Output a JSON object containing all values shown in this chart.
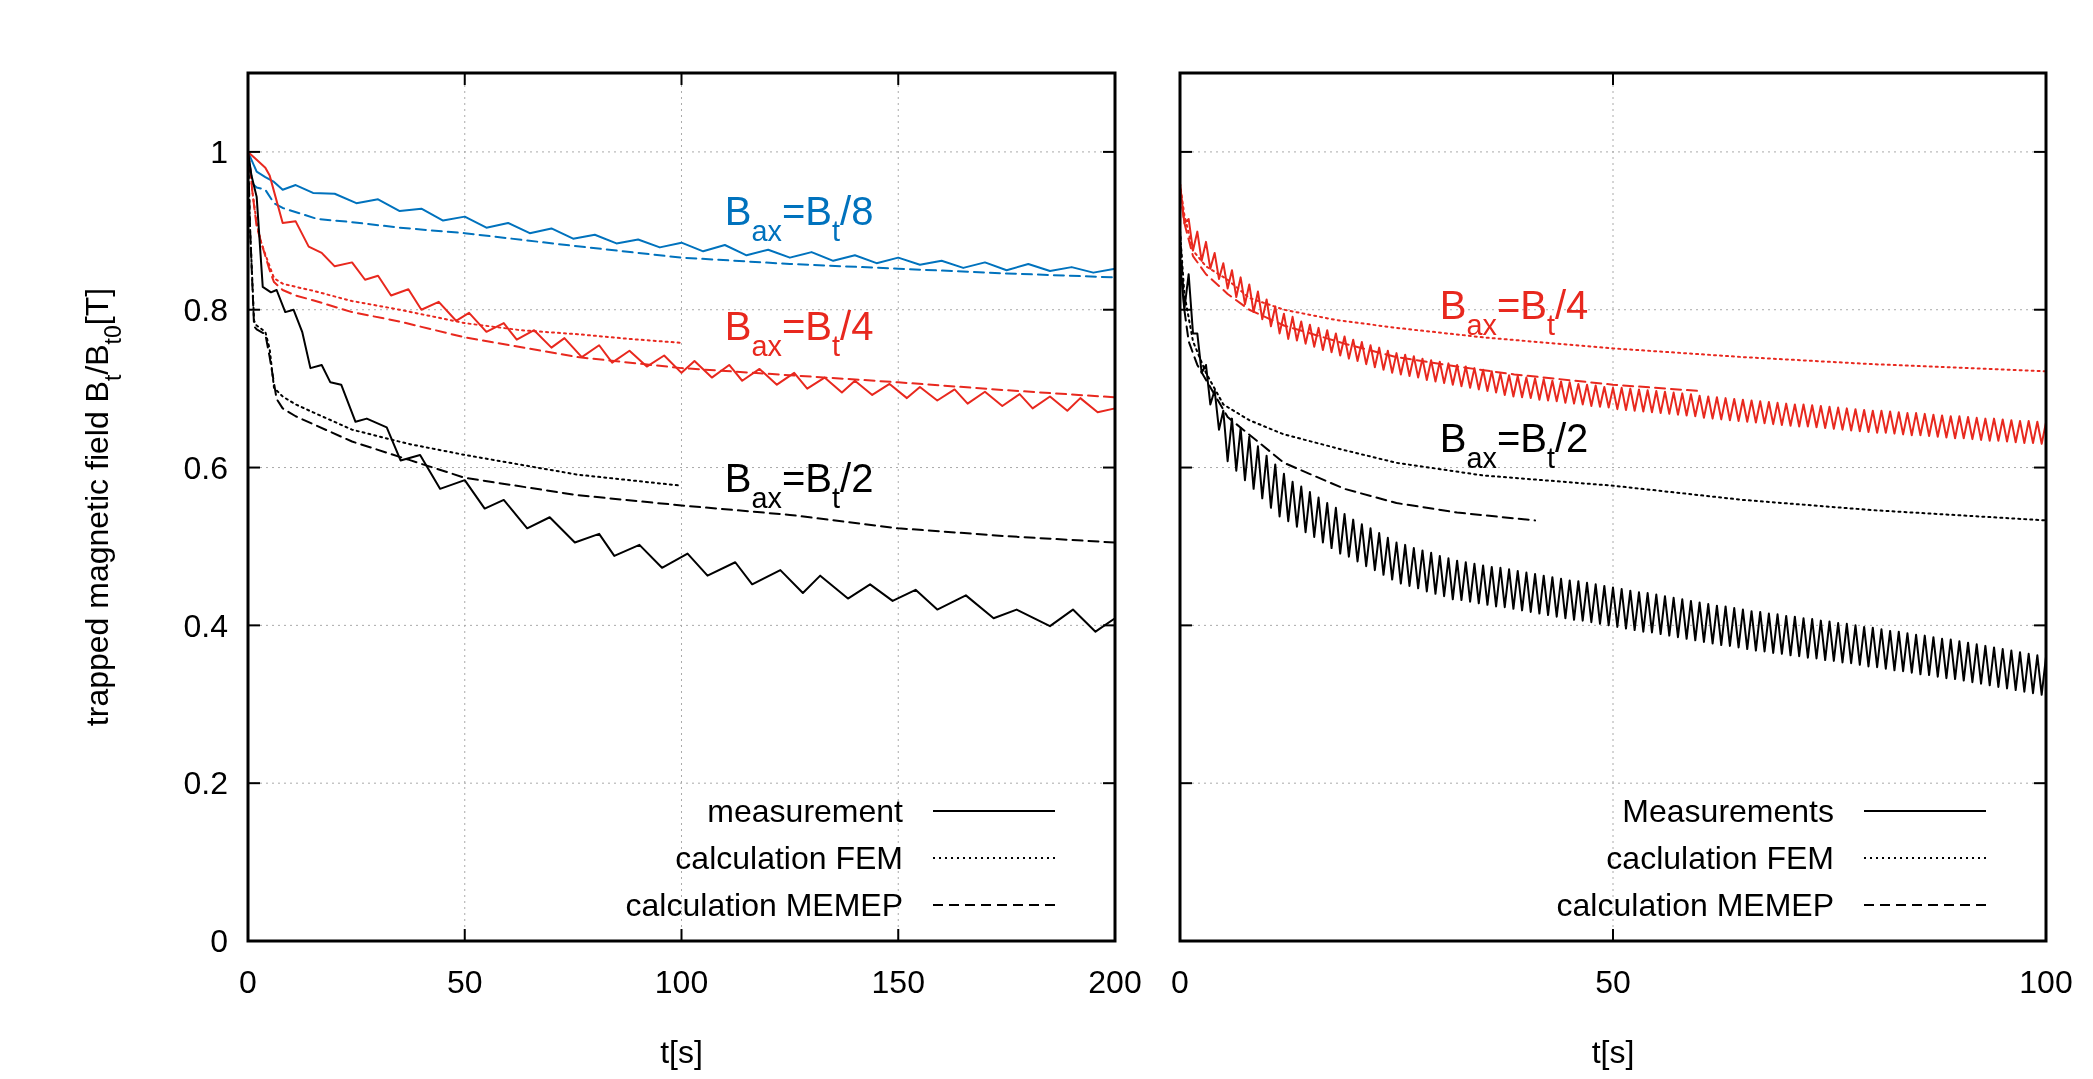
{
  "chart_data": [
    {
      "type": "line",
      "xlabel": "t[s]",
      "ylabel": "trapped magnetic field B$_{t}$/B$_{t0}$[T]",
      "xlim": [
        0,
        200
      ],
      "xticks": [
        0,
        50,
        100,
        150,
        200
      ],
      "ylim": [
        0,
        1.1
      ],
      "yticks": [
        0,
        0.2,
        0.4,
        0.6,
        0.8,
        1
      ],
      "grid": true,
      "legend": "bottom right",
      "series": [
        {
          "color": "#0072bd",
          "line_style": "solid",
          "x": [
            0,
            2,
            4,
            6,
            8,
            11,
            15,
            20,
            25,
            30,
            35,
            40,
            45,
            50,
            55,
            60,
            65,
            70,
            75,
            80,
            85,
            90,
            95,
            100,
            105,
            110,
            115,
            120,
            125,
            130,
            135,
            140,
            145,
            150,
            155,
            160,
            165,
            170,
            175,
            180,
            185,
            190,
            195,
            200
          ],
          "values": [
            1.0,
            0.975,
            0.968,
            0.962,
            0.952,
            0.958,
            0.948,
            0.947,
            0.935,
            0.94,
            0.925,
            0.928,
            0.913,
            0.918,
            0.904,
            0.91,
            0.897,
            0.903,
            0.89,
            0.895,
            0.884,
            0.889,
            0.879,
            0.885,
            0.874,
            0.882,
            0.869,
            0.876,
            0.866,
            0.873,
            0.862,
            0.869,
            0.859,
            0.866,
            0.857,
            0.862,
            0.853,
            0.86,
            0.85,
            0.858,
            0.849,
            0.854,
            0.847,
            0.852
          ]
        },
        {
          "color": "#0072bd",
          "line_style": "dashed",
          "x": [
            0,
            1,
            2,
            4,
            6,
            8,
            12,
            16,
            24,
            35,
            50,
            75,
            100,
            125,
            150,
            175,
            200
          ],
          "values": [
            1.0,
            0.96,
            0.955,
            0.952,
            0.935,
            0.929,
            0.922,
            0.915,
            0.911,
            0.904,
            0.897,
            0.881,
            0.866,
            0.858,
            0.852,
            0.846,
            0.841
          ]
        },
        {
          "color": "#e8281e",
          "line_style": "solid",
          "x": [
            0,
            2,
            4,
            5,
            6,
            8,
            11,
            14,
            17,
            20,
            24,
            27,
            30,
            33,
            37,
            40,
            44,
            48,
            51,
            55,
            59,
            62,
            66,
            70,
            73,
            77,
            81,
            84,
            88,
            92,
            96,
            100,
            103,
            107,
            111,
            114,
            118,
            122,
            126,
            129,
            133,
            137,
            140,
            144,
            148,
            152,
            155,
            159,
            163,
            166,
            170,
            174,
            178,
            181,
            185,
            189,
            192,
            196,
            200
          ],
          "values": [
            1.0,
            0.99,
            0.98,
            0.97,
            0.95,
            0.91,
            0.912,
            0.88,
            0.872,
            0.855,
            0.86,
            0.838,
            0.843,
            0.818,
            0.826,
            0.8,
            0.81,
            0.786,
            0.796,
            0.772,
            0.783,
            0.762,
            0.774,
            0.752,
            0.764,
            0.74,
            0.755,
            0.733,
            0.748,
            0.728,
            0.742,
            0.72,
            0.735,
            0.714,
            0.73,
            0.71,
            0.725,
            0.705,
            0.72,
            0.7,
            0.714,
            0.695,
            0.71,
            0.692,
            0.706,
            0.688,
            0.702,
            0.685,
            0.699,
            0.681,
            0.696,
            0.678,
            0.693,
            0.675,
            0.69,
            0.672,
            0.688,
            0.67,
            0.675
          ]
        },
        {
          "color": "#e8281e",
          "line_style": "dotted",
          "x": [
            0,
            0.5,
            1,
            2,
            3,
            4,
            5,
            6,
            8,
            11,
            15,
            24,
            35,
            50,
            63,
            76,
            88,
            100
          ],
          "values": [
            1.0,
            0.98,
            0.95,
            0.91,
            0.886,
            0.87,
            0.855,
            0.84,
            0.833,
            0.829,
            0.824,
            0.811,
            0.8,
            0.783,
            0.774,
            0.769,
            0.763,
            0.758
          ]
        },
        {
          "color": "#e8281e",
          "line_style": "dashed",
          "x": [
            0,
            0.5,
            1,
            2,
            3.4,
            5,
            6,
            8,
            11,
            15,
            24,
            35,
            50,
            76,
            100,
            125,
            150,
            175,
            200
          ],
          "values": [
            1.0,
            0.98,
            0.95,
            0.905,
            0.879,
            0.85,
            0.835,
            0.825,
            0.818,
            0.812,
            0.797,
            0.785,
            0.765,
            0.74,
            0.726,
            0.717,
            0.708,
            0.698,
            0.689
          ]
        },
        {
          "name": "measurement",
          "color": "#000000",
          "line_style": "solid",
          "x": [
            0,
            0.8,
            2,
            3.4,
            5.3,
            6.6,
            8.6,
            10.5,
            12.5,
            14.4,
            17,
            19,
            21.5,
            24.8,
            27.4,
            32,
            35.2,
            39.7,
            44.3,
            50,
            54.6,
            59,
            64.4,
            69.6,
            75.4,
            81,
            84.5,
            90.3,
            95.5,
            101.4,
            106,
            112.4,
            116.3,
            122.8,
            128,
            132,
            138.4,
            143.5,
            148.7,
            154,
            159,
            165.6,
            172,
            177.3,
            185,
            190.3,
            195.5,
            200
          ],
          "values": [
            1.0,
            0.97,
            0.943,
            0.829,
            0.822,
            0.825,
            0.797,
            0.8,
            0.772,
            0.726,
            0.73,
            0.708,
            0.705,
            0.658,
            0.662,
            0.651,
            0.609,
            0.616,
            0.573,
            0.584,
            0.548,
            0.559,
            0.523,
            0.537,
            0.505,
            0.516,
            0.488,
            0.502,
            0.473,
            0.491,
            0.463,
            0.48,
            0.452,
            0.47,
            0.441,
            0.463,
            0.434,
            0.452,
            0.431,
            0.445,
            0.42,
            0.438,
            0.409,
            0.42,
            0.399,
            0.42,
            0.392,
            0.409
          ]
        },
        {
          "name": "calculation FEM",
          "color": "#000000",
          "line_style": "dotted",
          "x": [
            0,
            0.5,
            1.4,
            2,
            4,
            5,
            6,
            8,
            11,
            15,
            24,
            37,
            50,
            76,
            100
          ],
          "values": [
            1.0,
            0.9,
            0.786,
            0.78,
            0.772,
            0.75,
            0.701,
            0.69,
            0.68,
            0.67,
            0.648,
            0.63,
            0.616,
            0.591,
            0.577
          ]
        },
        {
          "name": "calculation MEMEP",
          "color": "#000000",
          "line_style": "dashed",
          "x": [
            0,
            0.5,
            1.4,
            2,
            4,
            5,
            6.6,
            8,
            11,
            15,
            24,
            37,
            50,
            76,
            100,
            125,
            150,
            175,
            200
          ],
          "values": [
            1.0,
            0.9,
            0.779,
            0.775,
            0.769,
            0.74,
            0.687,
            0.675,
            0.665,
            0.655,
            0.633,
            0.61,
            0.587,
            0.565,
            0.552,
            0.54,
            0.523,
            0.513,
            0.505
          ]
        }
      ],
      "annotations": [
        "B$_{ax}$=B$_{t}$/8",
        "B$_{ax}$=B$_{t}$/4",
        "B$_{ax}$=B$_{t}$/2"
      ]
    },
    {
      "type": "line",
      "xlabel": "t[s]",
      "xlim": [
        0,
        100
      ],
      "xticks": [
        0,
        50,
        100
      ],
      "ylim": [
        0,
        1.1
      ],
      "yticks": [
        0,
        0.2,
        0.4,
        0.6,
        0.8,
        1
      ],
      "grid": true,
      "legend": "bottom right",
      "tick_labels": "x",
      "x": [
        0,
        0.5,
        1,
        1.5,
        2,
        2.5,
        3,
        3.5,
        4,
        4.5,
        5,
        5.5,
        6,
        6.5,
        7,
        7.5,
        8,
        8.5,
        9,
        9.5,
        10,
        10.5,
        11,
        11.5,
        12,
        12.5,
        13,
        13.5,
        14,
        14.5,
        15,
        15.5,
        16,
        16.5,
        17,
        17.5,
        18,
        18.5,
        19,
        19.5,
        20,
        20.5,
        21,
        21.5,
        22,
        22.5,
        23,
        23.5,
        24,
        24.5,
        25,
        25.5,
        26,
        26.5,
        27,
        27.5,
        28,
        28.5,
        29,
        29.5,
        30,
        30.5,
        31,
        31.5,
        32,
        32.5,
        33,
        33.5,
        34,
        34.5,
        35,
        35.5,
        36,
        36.5,
        37,
        37.5,
        38,
        38.5,
        39,
        39.5,
        40,
        40.5,
        41,
        41.5,
        42,
        42.5,
        43,
        43.5,
        44,
        44.5,
        45,
        45.5,
        46,
        46.5,
        47,
        47.5,
        48,
        48.5,
        49,
        49.5,
        50,
        50.5,
        51,
        51.5,
        52,
        52.5,
        53,
        53.5,
        54,
        54.5,
        55,
        55.5,
        56,
        56.5,
        57,
        57.5,
        58,
        58.5,
        59,
        59.5,
        60,
        60.5,
        61,
        61.5,
        62,
        62.5,
        63,
        63.5,
        64,
        64.5,
        65,
        65.5,
        66,
        66.5,
        67,
        67.5,
        68,
        68.5,
        69,
        69.5,
        70,
        70.5,
        71,
        71.5,
        72,
        72.5,
        73,
        73.5,
        74,
        74.5,
        75,
        75.5,
        76,
        76.5,
        77,
        77.5,
        78,
        78.5,
        79,
        79.5,
        80,
        80.5,
        81,
        81.5,
        82,
        82.5,
        83,
        83.5,
        84,
        84.5,
        85,
        85.5,
        86,
        86.5,
        87,
        87.5,
        88,
        88.5,
        89,
        89.5,
        90,
        90.5,
        91,
        91.5,
        92,
        92.5,
        93,
        93.5,
        94,
        94.5,
        95,
        95.5,
        96,
        96.5,
        97,
        97.5,
        98,
        98.5,
        99,
        99.5,
        100
      ],
      "series": [
        {
          "color": "#e8281e",
          "line_style": "solid",
          "values": [
            0.96,
            0.91,
            0.915,
            0.875,
            0.899,
            0.862,
            0.886,
            0.852,
            0.872,
            0.839,
            0.859,
            0.827,
            0.85,
            0.816,
            0.841,
            0.807,
            0.832,
            0.797,
            0.823,
            0.788,
            0.813,
            0.779,
            0.804,
            0.77,
            0.795,
            0.763,
            0.791,
            0.761,
            0.785,
            0.757,
            0.781,
            0.753,
            0.777,
            0.749,
            0.774,
            0.746,
            0.77,
            0.742,
            0.766,
            0.738,
            0.762,
            0.735,
            0.759,
            0.731,
            0.755,
            0.727,
            0.752,
            0.724,
            0.748,
            0.72,
            0.745,
            0.718,
            0.743,
            0.716,
            0.741,
            0.714,
            0.738,
            0.711,
            0.736,
            0.709,
            0.734,
            0.707,
            0.732,
            0.705,
            0.73,
            0.703,
            0.728,
            0.701,
            0.726,
            0.699,
            0.724,
            0.697,
            0.722,
            0.695,
            0.719,
            0.692,
            0.717,
            0.69,
            0.716,
            0.689,
            0.714,
            0.688,
            0.713,
            0.686,
            0.712,
            0.685,
            0.71,
            0.684,
            0.709,
            0.682,
            0.708,
            0.681,
            0.706,
            0.68,
            0.705,
            0.678,
            0.704,
            0.677,
            0.702,
            0.676,
            0.701,
            0.674,
            0.701,
            0.673,
            0.7,
            0.672,
            0.699,
            0.671,
            0.698,
            0.67,
            0.697,
            0.669,
            0.696,
            0.668,
            0.695,
            0.667,
            0.694,
            0.666,
            0.693,
            0.665,
            0.691,
            0.663,
            0.69,
            0.662,
            0.689,
            0.661,
            0.688,
            0.66,
            0.687,
            0.659,
            0.686,
            0.658,
            0.685,
            0.657,
            0.684,
            0.656,
            0.683,
            0.655,
            0.682,
            0.654,
            0.681,
            0.653,
            0.68,
            0.652,
            0.68,
            0.652,
            0.679,
            0.651,
            0.678,
            0.65,
            0.677,
            0.649,
            0.676,
            0.648,
            0.675,
            0.647,
            0.674,
            0.646,
            0.673,
            0.645,
            0.672,
            0.644,
            0.672,
            0.644,
            0.671,
            0.643,
            0.67,
            0.642,
            0.669,
            0.641,
            0.669,
            0.641,
            0.668,
            0.64,
            0.667,
            0.639,
            0.666,
            0.638,
            0.665,
            0.637,
            0.665,
            0.637,
            0.664,
            0.636,
            0.663,
            0.635,
            0.662,
            0.634,
            0.662,
            0.634,
            0.661,
            0.633,
            0.66,
            0.632,
            0.659,
            0.631,
            0.659,
            0.631,
            0.658,
            0.63,
            0.657
          ]
        },
        {
          "color": "#e8281e",
          "line_style": "dotted",
          "x": [
            0,
            0.5,
            1.5,
            3,
            5.5,
            8,
            12,
            18,
            25,
            35,
            50,
            65,
            80,
            100
          ],
          "values": [
            0.96,
            0.92,
            0.875,
            0.855,
            0.838,
            0.815,
            0.8,
            0.787,
            0.777,
            0.765,
            0.751,
            0.74,
            0.731,
            0.722
          ]
        },
        {
          "color": "#e8281e",
          "line_style": "dashed",
          "x": [
            0,
            0.5,
            1.5,
            3,
            5.5,
            8,
            12,
            19,
            25,
            32,
            38.6,
            50,
            60
          ],
          "values": [
            0.95,
            0.91,
            0.868,
            0.845,
            0.82,
            0.8,
            0.78,
            0.757,
            0.74,
            0.728,
            0.718,
            0.705,
            0.697
          ]
        },
        {
          "name": "Measurements",
          "color": "#000000",
          "line_style": "solid",
          "values": [
            0.86,
            0.8,
            0.845,
            0.77,
            0.77,
            0.72,
            0.73,
            0.68,
            0.698,
            0.648,
            0.672,
            0.608,
            0.662,
            0.596,
            0.65,
            0.584,
            0.639,
            0.573,
            0.627,
            0.561,
            0.615,
            0.549,
            0.604,
            0.538,
            0.592,
            0.532,
            0.582,
            0.525,
            0.576,
            0.518,
            0.569,
            0.512,
            0.562,
            0.505,
            0.555,
            0.498,
            0.549,
            0.491,
            0.541,
            0.487,
            0.534,
            0.481,
            0.528,
            0.475,
            0.523,
            0.47,
            0.517,
            0.464,
            0.511,
            0.458,
            0.505,
            0.453,
            0.502,
            0.45,
            0.498,
            0.447,
            0.495,
            0.443,
            0.492,
            0.44,
            0.488,
            0.437,
            0.485,
            0.433,
            0.482,
            0.432,
            0.48,
            0.43,
            0.478,
            0.428,
            0.476,
            0.426,
            0.474,
            0.424,
            0.473,
            0.423,
            0.471,
            0.421,
            0.469,
            0.419,
            0.467,
            0.417,
            0.465,
            0.415,
            0.463,
            0.413,
            0.461,
            0.411,
            0.459,
            0.409,
            0.457,
            0.407,
            0.456,
            0.406,
            0.454,
            0.404,
            0.452,
            0.402,
            0.45,
            0.4,
            0.448,
            0.398,
            0.446,
            0.396,
            0.444,
            0.394,
            0.442,
            0.392,
            0.441,
            0.391,
            0.439,
            0.389,
            0.437,
            0.387,
            0.435,
            0.385,
            0.433,
            0.383,
            0.431,
            0.381,
            0.429,
            0.379,
            0.427,
            0.377,
            0.425,
            0.375,
            0.424,
            0.374,
            0.422,
            0.372,
            0.42,
            0.37,
            0.418,
            0.368,
            0.417,
            0.367,
            0.415,
            0.365,
            0.414,
            0.364,
            0.412,
            0.362,
            0.411,
            0.361,
            0.409,
            0.359,
            0.408,
            0.358,
            0.406,
            0.356,
            0.405,
            0.355,
            0.403,
            0.353,
            0.402,
            0.352,
            0.4,
            0.35,
            0.398,
            0.348,
            0.397,
            0.347,
            0.395,
            0.345,
            0.393,
            0.343,
            0.392,
            0.342,
            0.39,
            0.34,
            0.388,
            0.338,
            0.387,
            0.337,
            0.385,
            0.335,
            0.383,
            0.333,
            0.382,
            0.332,
            0.38,
            0.33,
            0.378,
            0.328,
            0.376,
            0.326,
            0.374,
            0.324,
            0.372,
            0.322,
            0.37,
            0.32,
            0.368,
            0.318,
            0.366,
            0.316,
            0.364,
            0.314,
            0.362,
            0.312,
            0.36
          ]
        },
        {
          "name": "caclulation FEM",
          "color": "#000000",
          "line_style": "dotted",
          "x": [
            0,
            0.5,
            1.5,
            3,
            5,
            8,
            12,
            19,
            25,
            35,
            50,
            65,
            80,
            100
          ],
          "values": [
            0.9,
            0.82,
            0.76,
            0.72,
            0.68,
            0.66,
            0.642,
            0.622,
            0.606,
            0.59,
            0.577,
            0.559,
            0.546,
            0.533
          ]
        },
        {
          "name": "calculation MEMEP",
          "color": "#000000",
          "line_style": "dashed",
          "x": [
            0,
            0.5,
            1,
            2,
            5.5,
            12,
            19,
            25,
            32,
            41
          ],
          "values": [
            0.9,
            0.8,
            0.76,
            0.73,
            0.664,
            0.606,
            0.573,
            0.555,
            0.543,
            0.533
          ]
        }
      ],
      "annotations": [
        "B$_{ax}$=B$_{t}$/4",
        "B$_{ax}$=B$_{t}$/2"
      ]
    }
  ]
}
